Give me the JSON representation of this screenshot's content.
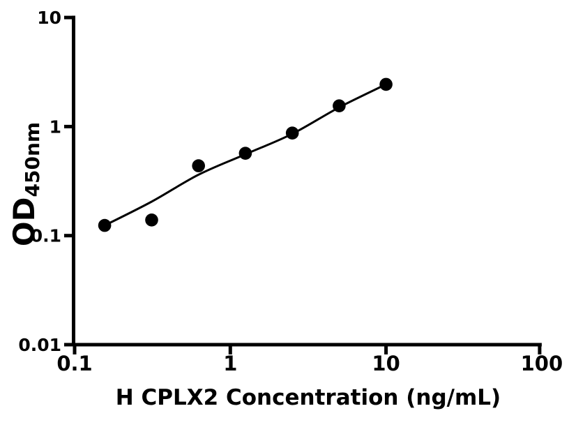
{
  "figure": {
    "background": "#ffffff",
    "ink": "#000000"
  },
  "chart_data": {
    "type": "scatter",
    "title": "",
    "xlabel": "H CPLX2 Concentration (ng/mL)",
    "ylabel": "OD450nm",
    "ylabel_main": "OD",
    "ylabel_sub": "450nm",
    "x_scale": "log",
    "y_scale": "log",
    "xlim": [
      0.1,
      100
    ],
    "ylim": [
      0.01,
      10
    ],
    "grid": false,
    "legend": "none",
    "x_ticks": [
      {
        "value": 0.1,
        "label": "0.1"
      },
      {
        "value": 1,
        "label": "1"
      },
      {
        "value": 10,
        "label": "10"
      },
      {
        "value": 100,
        "label": "100"
      }
    ],
    "y_ticks": [
      {
        "value": 10,
        "label": "10"
      },
      {
        "value": 1,
        "label": "1"
      },
      {
        "value": 0.1,
        "label": "0.1"
      },
      {
        "value": 0.01,
        "label": "0.01"
      }
    ],
    "series": [
      {
        "name": "standard-points",
        "type": "scatter",
        "marker": "filled-circle",
        "color": "#000000",
        "x": [
          0.156,
          0.3125,
          0.625,
          1.25,
          2.5,
          5,
          10
        ],
        "y": [
          0.124,
          0.139,
          0.437,
          0.569,
          0.872,
          1.55,
          2.44
        ]
      },
      {
        "name": "fit-curve",
        "type": "line",
        "color": "#000000",
        "x": [
          0.156,
          0.3125,
          0.625,
          1.25,
          2.5,
          5,
          10
        ],
        "y": [
          0.124,
          0.205,
          0.362,
          0.557,
          0.858,
          1.5,
          2.44
        ]
      }
    ]
  }
}
